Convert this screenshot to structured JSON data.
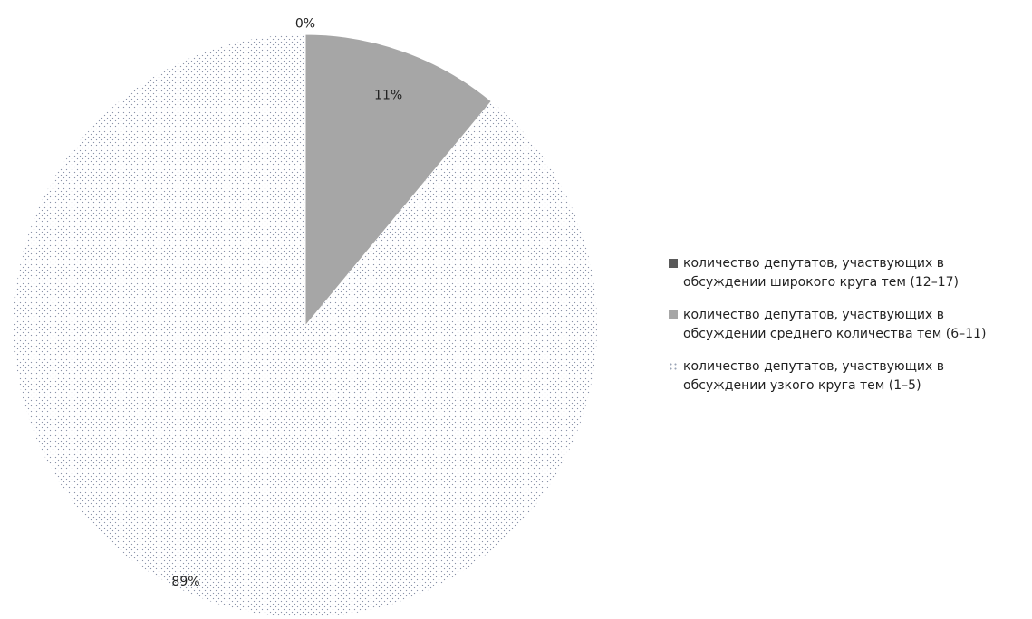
{
  "chart_data": {
    "type": "pie",
    "slices": [
      {
        "label": "количество  депутатов, участвующих в\nобсуждении широкого круга тем (12–17)",
        "value": 0,
        "data_label": "0%",
        "color": "#595959",
        "pattern": "solid"
      },
      {
        "label": "количество  депутатов, участвующих в\nобсуждении среднего количества тем (6–11)",
        "value": 11,
        "data_label": "11%",
        "color": "#a6a6a6",
        "pattern": "solid"
      },
      {
        "label": "количество  депутатов, участвующих в\nобсуждении узкого круга тем (1–5)",
        "value": 89,
        "data_label": "89%",
        "color": "#9aa3b5",
        "pattern": "dotted"
      }
    ],
    "legend_position": "right"
  }
}
